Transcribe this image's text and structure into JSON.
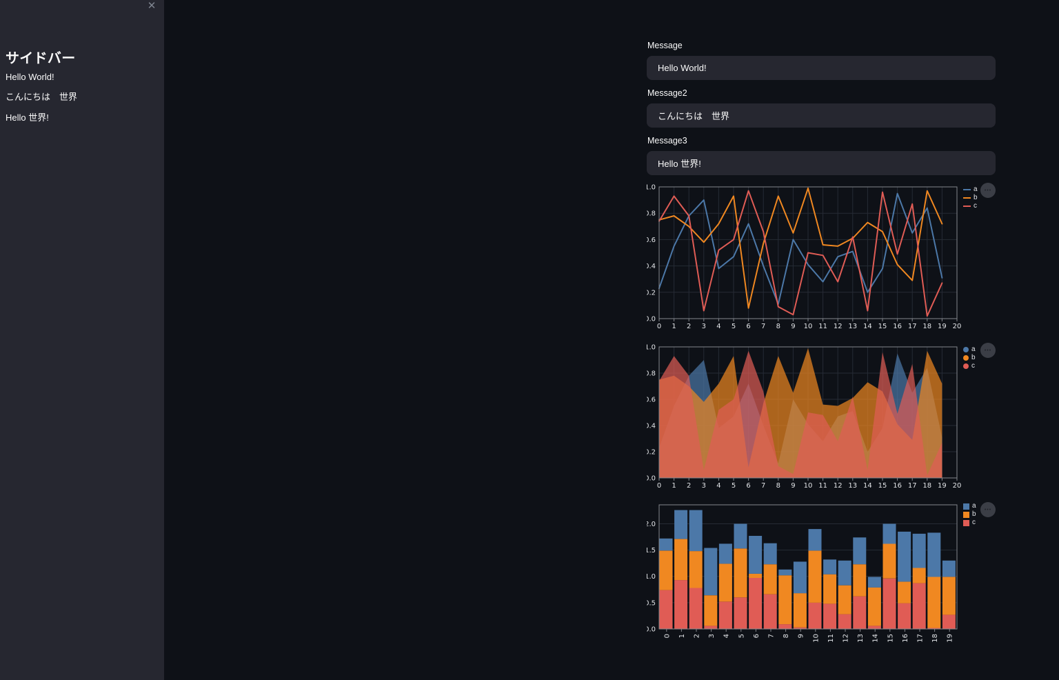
{
  "sidebar": {
    "title": "サイドバー",
    "close_icon": "✕",
    "items": [
      "Hello World!",
      "こんにちは　世界",
      "Hello 世界!"
    ],
    "background": "#262730"
  },
  "main": {
    "fields": [
      {
        "label": "Message",
        "value": "Hello World!"
      },
      {
        "label": "Message2",
        "value": "こんにちは　世界"
      },
      {
        "label": "Message3",
        "value": "Hello 世界!"
      }
    ]
  },
  "charts": {
    "menu_icon": "•••"
  },
  "colors": {
    "background": "#0e1117",
    "sidebar_background": "#262730",
    "input_background": "#262730",
    "text": "#fafafa",
    "grid": "#262b35",
    "plot_border": "#84878d",
    "axis_text": "#e3e5e8",
    "series": {
      "a": "#4c78a8",
      "b": "#f08821",
      "c": "#e05c55"
    }
  },
  "chart_data": [
    {
      "type": "line",
      "title": "",
      "xlabel": "",
      "ylabel": "",
      "x": [
        0,
        1,
        2,
        3,
        4,
        5,
        6,
        7,
        8,
        9,
        10,
        11,
        12,
        13,
        14,
        15,
        16,
        17,
        18,
        19
      ],
      "series": [
        {
          "name": "a",
          "values": [
            0.23,
            0.55,
            0.78,
            0.9,
            0.38,
            0.47,
            0.72,
            0.4,
            0.11,
            0.6,
            0.41,
            0.28,
            0.47,
            0.51,
            0.2,
            0.38,
            0.95,
            0.65,
            0.84,
            0.31
          ]
        },
        {
          "name": "b",
          "values": [
            0.75,
            0.78,
            0.7,
            0.58,
            0.72,
            0.93,
            0.08,
            0.57,
            0.93,
            0.65,
            0.99,
            0.56,
            0.55,
            0.61,
            0.73,
            0.66,
            0.41,
            0.29,
            0.97,
            0.72
          ]
        },
        {
          "name": "c",
          "values": [
            0.74,
            0.93,
            0.78,
            0.06,
            0.52,
            0.6,
            0.97,
            0.66,
            0.09,
            0.03,
            0.5,
            0.48,
            0.28,
            0.62,
            0.06,
            0.96,
            0.49,
            0.87,
            0.02,
            0.27
          ]
        }
      ],
      "xlim": [
        0,
        20
      ],
      "ylim": [
        0,
        1
      ],
      "xticks": [
        0,
        1,
        2,
        3,
        4,
        5,
        6,
        7,
        8,
        9,
        10,
        11,
        12,
        13,
        14,
        15,
        16,
        17,
        18,
        19,
        20
      ],
      "xticklabels": [
        "0",
        "1",
        "2",
        "3",
        "4",
        "5",
        "6",
        "7",
        "8",
        "9",
        "10",
        "11",
        "12",
        "13",
        "14",
        "15",
        "16",
        "17",
        "18",
        "19",
        "20"
      ],
      "yticks": [
        "0.0",
        "0.2",
        "0.4",
        "0.6",
        "0.8",
        "1.0"
      ],
      "grid": true,
      "legend_position": "top-right",
      "legend_symbol": "line"
    },
    {
      "type": "area",
      "title": "",
      "xlabel": "",
      "ylabel": "",
      "stacked": false,
      "fill_opacity": 0.7,
      "x": [
        0,
        1,
        2,
        3,
        4,
        5,
        6,
        7,
        8,
        9,
        10,
        11,
        12,
        13,
        14,
        15,
        16,
        17,
        18,
        19
      ],
      "series": [
        {
          "name": "a",
          "values": [
            0.23,
            0.55,
            0.78,
            0.9,
            0.38,
            0.47,
            0.72,
            0.4,
            0.11,
            0.6,
            0.41,
            0.28,
            0.47,
            0.51,
            0.2,
            0.38,
            0.95,
            0.65,
            0.84,
            0.31
          ]
        },
        {
          "name": "b",
          "values": [
            0.75,
            0.78,
            0.7,
            0.58,
            0.72,
            0.93,
            0.08,
            0.57,
            0.93,
            0.65,
            0.99,
            0.56,
            0.55,
            0.61,
            0.73,
            0.66,
            0.41,
            0.29,
            0.97,
            0.72
          ]
        },
        {
          "name": "c",
          "values": [
            0.74,
            0.93,
            0.78,
            0.06,
            0.52,
            0.6,
            0.97,
            0.66,
            0.09,
            0.03,
            0.5,
            0.48,
            0.28,
            0.62,
            0.06,
            0.96,
            0.49,
            0.87,
            0.02,
            0.27
          ]
        }
      ],
      "xlim": [
        0,
        20
      ],
      "ylim": [
        0,
        1
      ],
      "xticks": [
        0,
        1,
        2,
        3,
        4,
        5,
        6,
        7,
        8,
        9,
        10,
        11,
        12,
        13,
        14,
        15,
        16,
        17,
        18,
        19,
        20
      ],
      "xticklabels": [
        "0",
        "1",
        "2",
        "3",
        "4",
        "5",
        "6",
        "7",
        "8",
        "9",
        "10",
        "11",
        "12",
        "13",
        "14",
        "15",
        "16",
        "17",
        "18",
        "19",
        "20"
      ],
      "yticks": [
        "0.0",
        "0.2",
        "0.4",
        "0.6",
        "0.8",
        "1.0"
      ],
      "grid": true,
      "legend_position": "top-right",
      "legend_symbol": "circle"
    },
    {
      "type": "bar",
      "title": "",
      "xlabel": "",
      "ylabel": "",
      "stacked": true,
      "categories": [
        "0",
        "1",
        "2",
        "3",
        "4",
        "5",
        "6",
        "7",
        "8",
        "9",
        "10",
        "11",
        "12",
        "13",
        "14",
        "15",
        "16",
        "17",
        "18",
        "19"
      ],
      "series": [
        {
          "name": "a",
          "values": [
            0.23,
            0.55,
            0.78,
            0.9,
            0.38,
            0.47,
            0.72,
            0.4,
            0.11,
            0.6,
            0.41,
            0.28,
            0.47,
            0.51,
            0.2,
            0.38,
            0.95,
            0.65,
            0.84,
            0.31
          ]
        },
        {
          "name": "b",
          "values": [
            0.75,
            0.78,
            0.7,
            0.58,
            0.72,
            0.93,
            0.08,
            0.57,
            0.93,
            0.65,
            0.99,
            0.56,
            0.55,
            0.61,
            0.73,
            0.66,
            0.41,
            0.29,
            0.97,
            0.72
          ]
        },
        {
          "name": "c",
          "values": [
            0.74,
            0.93,
            0.78,
            0.06,
            0.52,
            0.6,
            0.97,
            0.66,
            0.09,
            0.03,
            0.5,
            0.48,
            0.28,
            0.62,
            0.06,
            0.96,
            0.49,
            0.87,
            0.02,
            0.27
          ]
        }
      ],
      "stack_order_bottom_to_top": [
        "c",
        "b",
        "a"
      ],
      "ylim": [
        0,
        2.36
      ],
      "yticks": [
        "0.0",
        "0.5",
        "1.0",
        "1.5",
        "2.0"
      ],
      "xticklabel_angle": -90,
      "grid": "horizontal",
      "legend_position": "top-right",
      "legend_symbol": "square"
    }
  ]
}
